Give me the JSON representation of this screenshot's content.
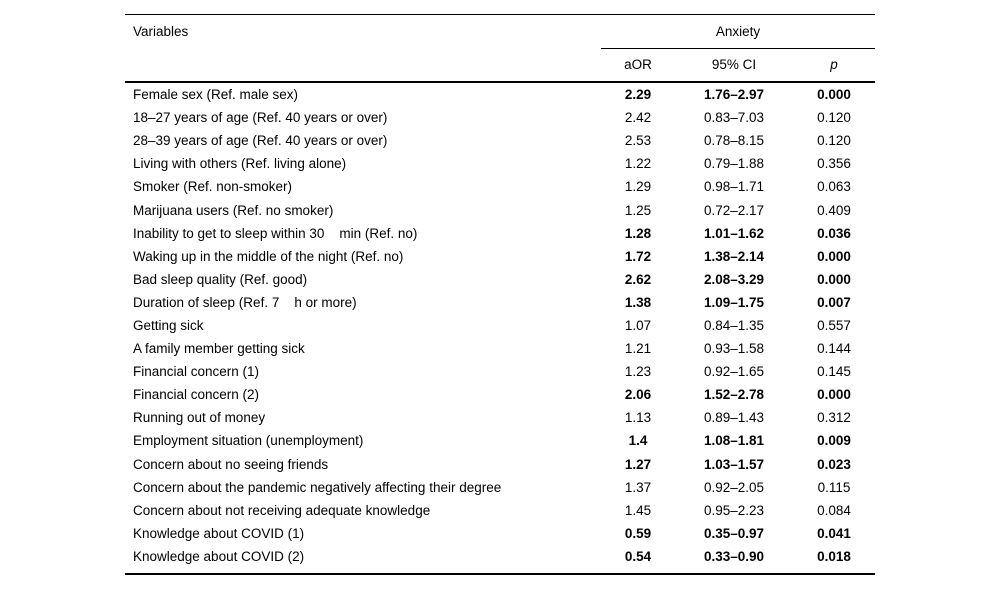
{
  "table": {
    "variables_header": "Variables",
    "group_header": "Anxiety",
    "columns": {
      "aor": "aOR",
      "ci": "95% CI",
      "p": "p"
    },
    "rows": [
      {
        "variable": "Female sex (Ref. male sex)",
        "aor": "2.29",
        "ci": "1.76–2.97",
        "p": "0.000",
        "significant": true
      },
      {
        "variable": "18–27 years of age (Ref. 40 years or over)",
        "aor": "2.42",
        "ci": "0.83–7.03",
        "p": "0.120",
        "significant": false
      },
      {
        "variable": "28–39 years of age (Ref. 40 years or over)",
        "aor": "2.53",
        "ci": "0.78–8.15",
        "p": "0.120",
        "significant": false
      },
      {
        "variable": "Living with others (Ref. living alone)",
        "aor": "1.22",
        "ci": "0.79–1.88",
        "p": "0.356",
        "significant": false
      },
      {
        "variable": "Smoker (Ref. non-smoker)",
        "aor": "1.29",
        "ci": "0.98–1.71",
        "p": "0.063",
        "significant": false
      },
      {
        "variable": "Marijuana users (Ref. no smoker)",
        "aor": "1.25",
        "ci": "0.72–2.17",
        "p": "0.409",
        "significant": false
      },
      {
        "variable": "Inability to get to sleep within 30    min (Ref. no)",
        "aor": "1.28",
        "ci": "1.01–1.62",
        "p": "0.036",
        "significant": true
      },
      {
        "variable": "Waking up in the middle of the night (Ref. no)",
        "aor": "1.72",
        "ci": "1.38–2.14",
        "p": "0.000",
        "significant": true
      },
      {
        "variable": "Bad sleep quality (Ref. good)",
        "aor": "2.62",
        "ci": "2.08–3.29",
        "p": "0.000",
        "significant": true
      },
      {
        "variable": "Duration of sleep (Ref. 7    h or more)",
        "aor": "1.38",
        "ci": "1.09–1.75",
        "p": "0.007",
        "significant": true
      },
      {
        "variable": "Getting sick",
        "aor": "1.07",
        "ci": "0.84–1.35",
        "p": "0.557",
        "significant": false
      },
      {
        "variable": "A family member getting sick",
        "aor": "1.21",
        "ci": "0.93–1.58",
        "p": "0.144",
        "significant": false
      },
      {
        "variable": "Financial concern (1)",
        "aor": "1.23",
        "ci": "0.92–1.65",
        "p": "0.145",
        "significant": false
      },
      {
        "variable": "Financial concern (2)",
        "aor": "2.06",
        "ci": "1.52–2.78",
        "p": "0.000",
        "significant": true
      },
      {
        "variable": "Running out of money",
        "aor": "1.13",
        "ci": "0.89–1.43",
        "p": "0.312",
        "significant": false
      },
      {
        "variable": "Employment situation (unemployment)",
        "aor": "1.4",
        "ci": "1.08–1.81",
        "p": "0.009",
        "significant": true
      },
      {
        "variable": "Concern about no seeing friends",
        "aor": "1.27",
        "ci": "1.03–1.57",
        "p": "0.023",
        "significant": true
      },
      {
        "variable": "Concern about the pandemic negatively affecting their degree",
        "aor": "1.37",
        "ci": "0.92–2.05",
        "p": "0.115",
        "significant": false
      },
      {
        "variable": "Concern about not receiving adequate knowledge",
        "aor": "1.45",
        "ci": "0.95–2.23",
        "p": "0.084",
        "significant": false
      },
      {
        "variable": "Knowledge about COVID (1)",
        "aor": "0.59",
        "ci": "0.35–0.97",
        "p": "0.041",
        "significant": true
      },
      {
        "variable": "Knowledge about COVID (2)",
        "aor": "0.54",
        "ci": "0.33–0.90",
        "p": "0.018",
        "significant": true
      }
    ]
  }
}
